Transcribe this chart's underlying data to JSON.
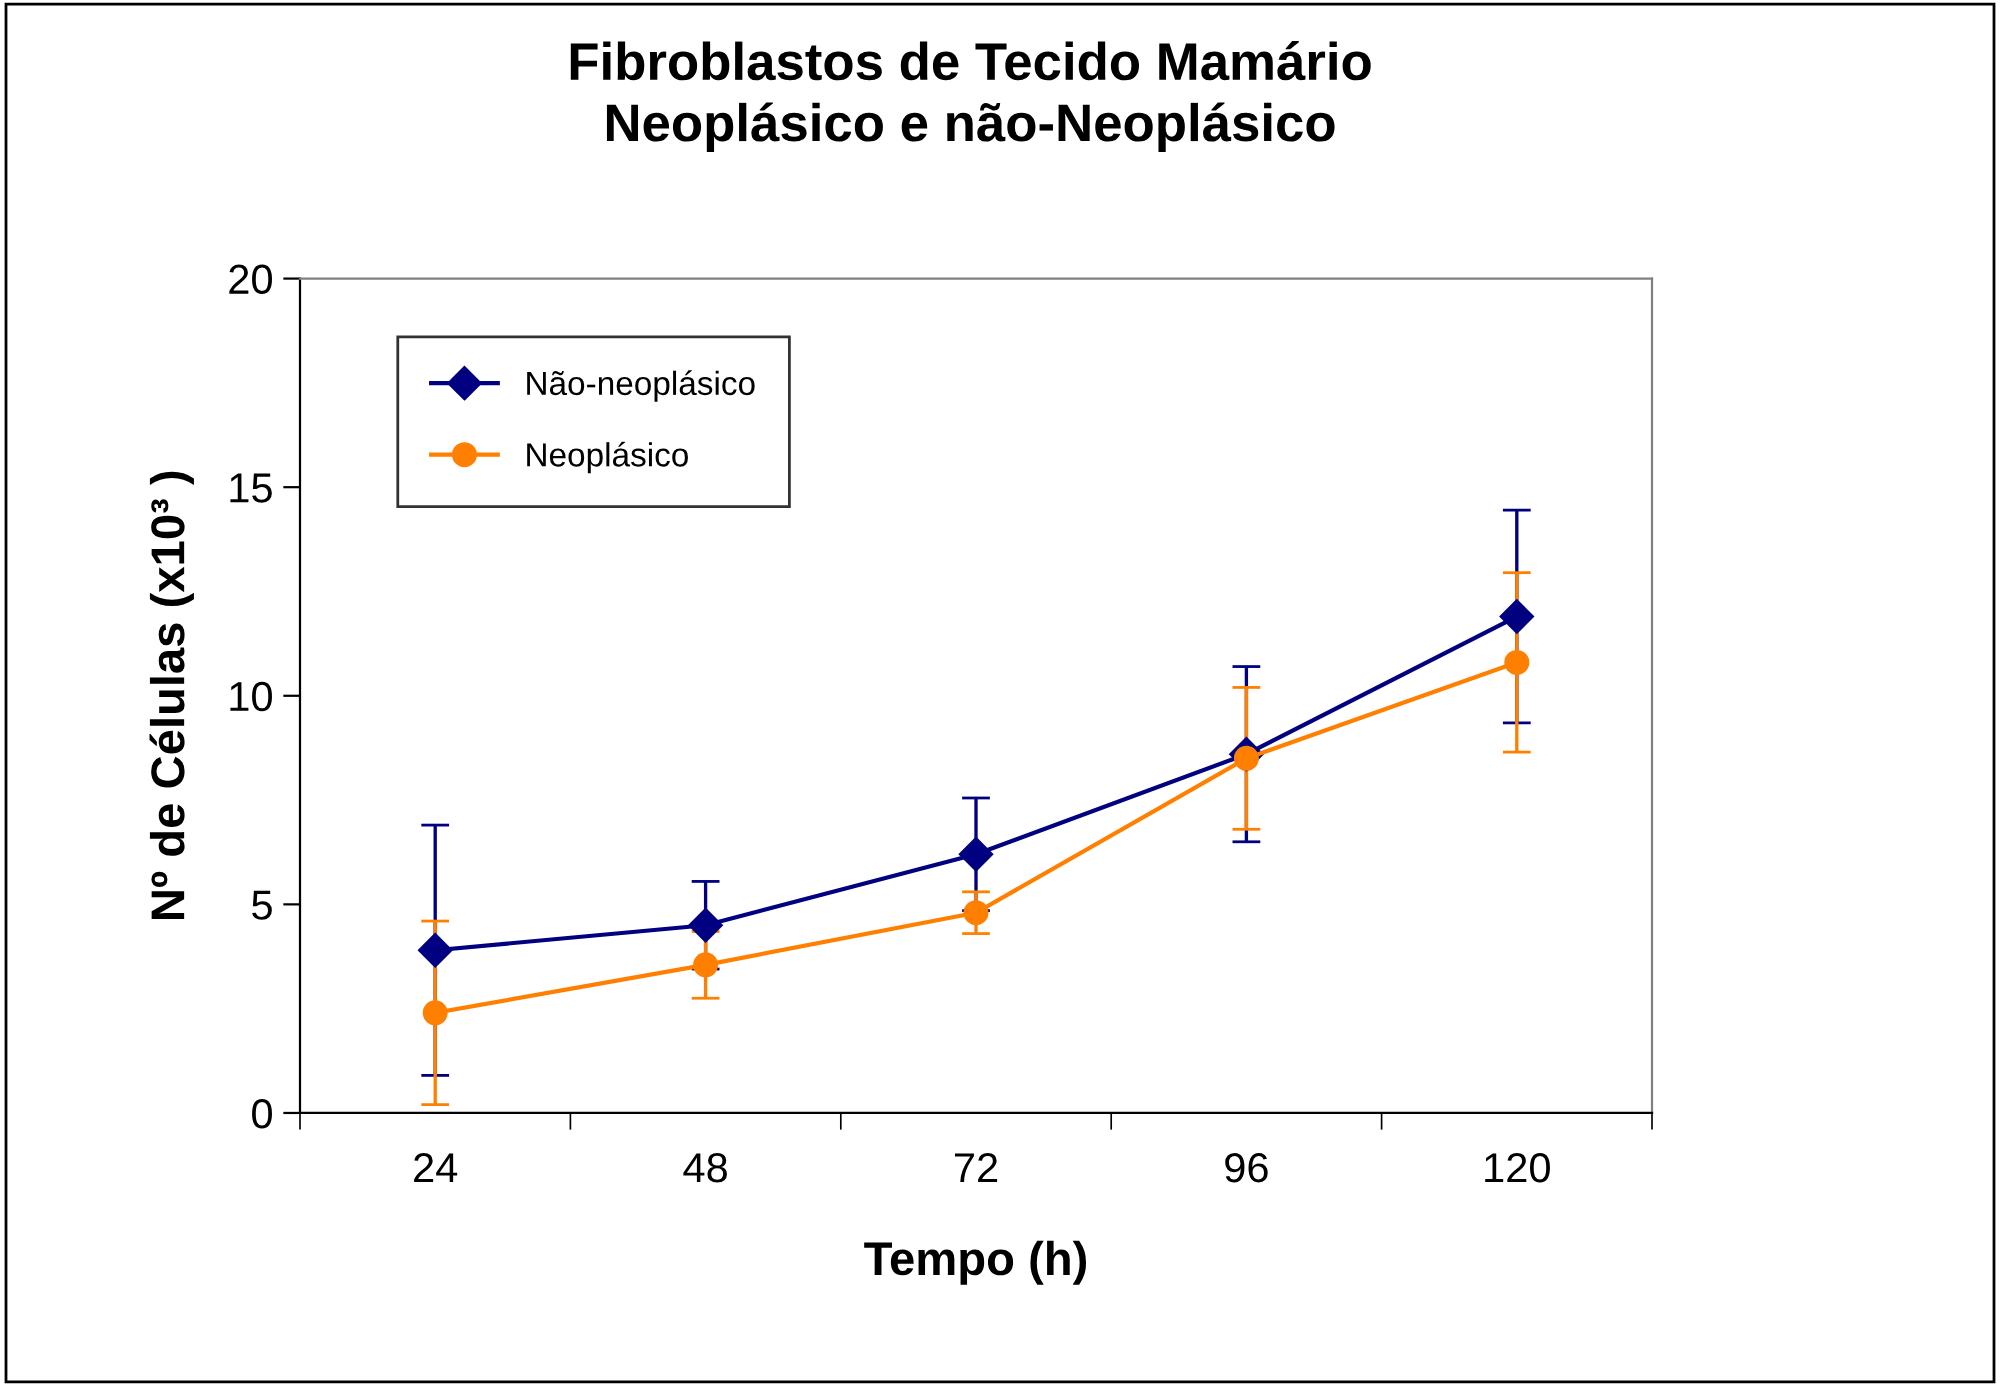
{
  "chart_data": {
    "type": "line",
    "title": "Fibroblastos de Tecido Mamário\nNeoplásico e não-Neoplásico",
    "xlabel": "Tempo (h)",
    "ylabel": "Nº de Células (x10³ )",
    "categories": [
      "24",
      "48",
      "72",
      "96",
      "120"
    ],
    "series": [
      {
        "name": "Não-neoplásico",
        "color": "#000080",
        "marker": "diamond",
        "values": [
          3.9,
          4.5,
          6.2,
          8.6,
          11.9
        ],
        "errors": [
          3.0,
          1.05,
          1.35,
          2.1,
          2.55
        ]
      },
      {
        "name": "Neoplásico",
        "color": "#ff8000",
        "marker": "circle",
        "values": [
          2.4,
          3.55,
          4.8,
          8.5,
          10.8
        ],
        "errors": [
          2.2,
          0.8,
          0.5,
          1.7,
          2.15
        ]
      }
    ],
    "ylim": [
      0,
      20
    ],
    "yticks": [
      0,
      5,
      10,
      15,
      20
    ],
    "grid": false,
    "legend": "top left",
    "line_style": "solid"
  }
}
